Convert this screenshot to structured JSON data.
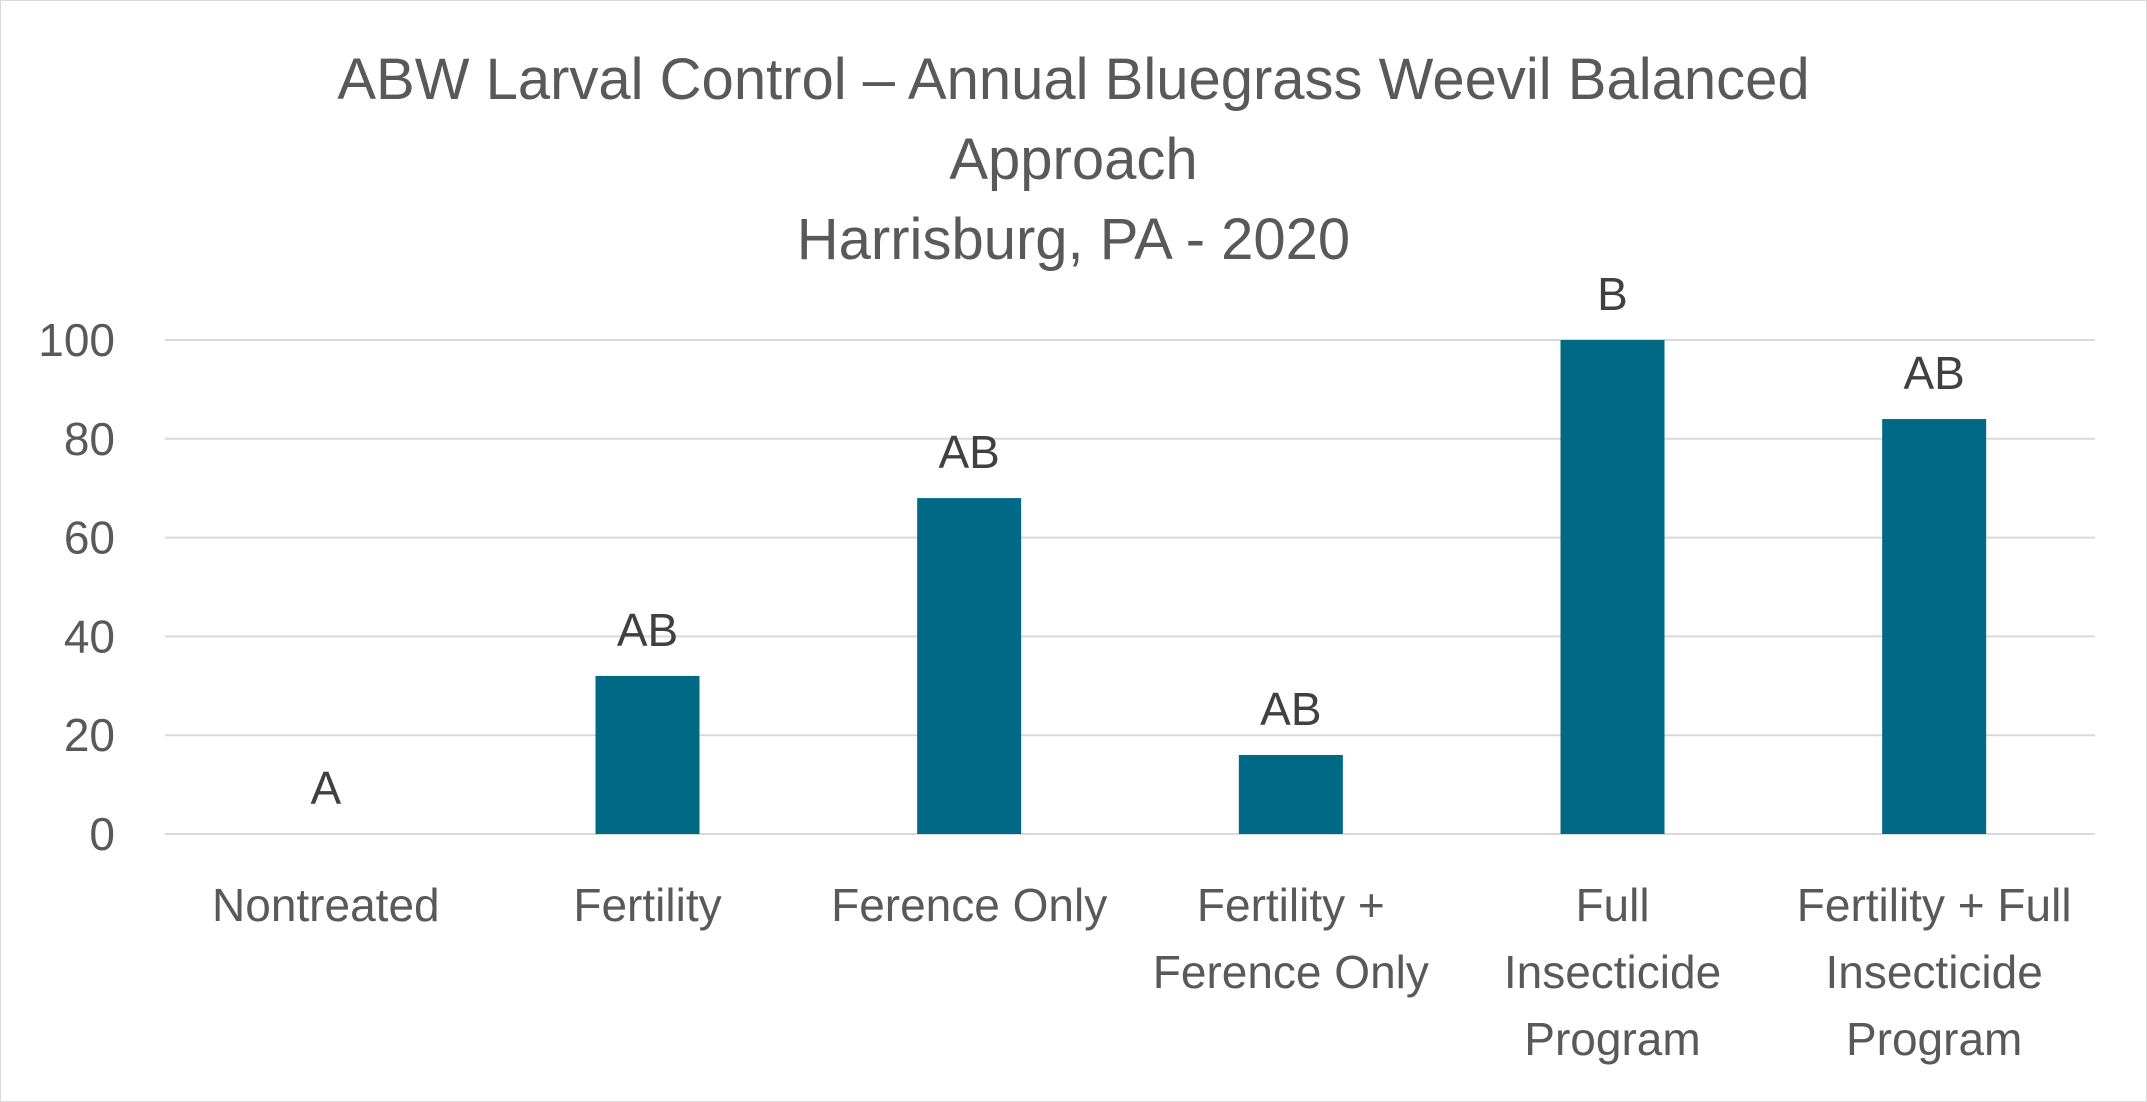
{
  "chart_data": {
    "type": "bar",
    "title_lines": [
      "ABW Larval Control – Annual Bluegrass Weevil Balanced",
      "Approach",
      "Harrisburg, PA - 2020"
    ],
    "categories": [
      [
        "Nontreated"
      ],
      [
        "Fertility"
      ],
      [
        "Ference Only"
      ],
      [
        "Fertility +",
        "Ference Only"
      ],
      [
        "Full",
        "Insecticide",
        "Program"
      ],
      [
        "Fertility + Full",
        "Insecticide",
        "Program"
      ]
    ],
    "values": [
      0,
      32,
      68,
      16,
      100,
      84
    ],
    "data_labels": [
      "A",
      "AB",
      "AB",
      "AB",
      "B",
      "AB"
    ],
    "ylim": [
      0,
      100
    ],
    "yticks": [
      0,
      20,
      40,
      60,
      80,
      100
    ],
    "xlabel": "",
    "ylabel": "",
    "grid": true,
    "legend": "none",
    "bar_color": "#006A86",
    "grid_color": "#d9d9d9",
    "text_color": "#595959"
  }
}
